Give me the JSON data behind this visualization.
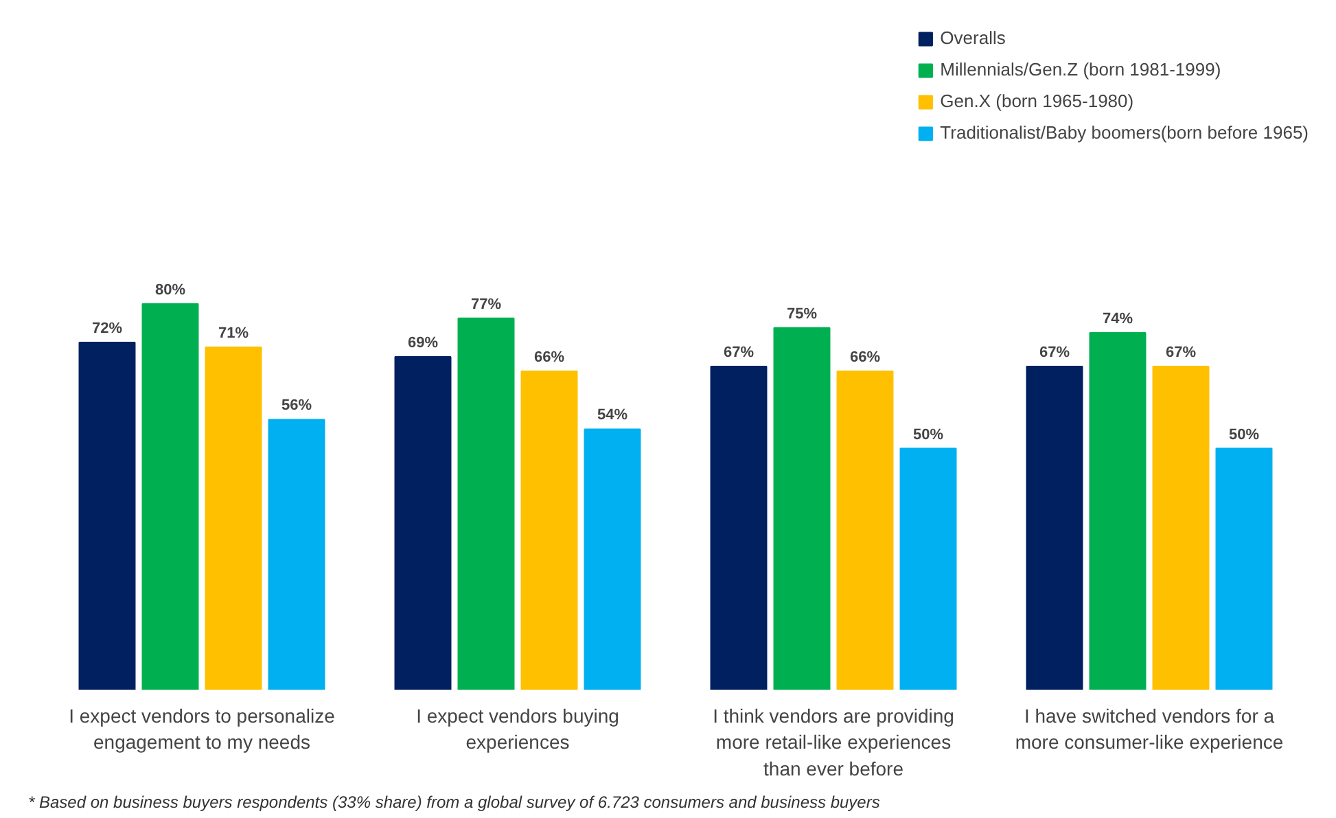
{
  "chart_data": {
    "type": "bar",
    "categories": [
      "I expect vendors to personalize engagement to my needs",
      "I expect vendors buying experiences",
      "I think vendors are providing more retail-like experiences than ever before",
      "I have switched vendors for a more consumer-like experience"
    ],
    "series": [
      {
        "name": "Overalls",
        "color": "#002060",
        "values": [
          72,
          69,
          67,
          67
        ],
        "value_labels": [
          "72%",
          "69%",
          "67%",
          "67%"
        ]
      },
      {
        "name": "Millennials/Gen.Z (born 1981-1999)",
        "color": "#00b050",
        "values": [
          80,
          77,
          75,
          74
        ],
        "value_labels": [
          "80%",
          "77%",
          "75%",
          "74%"
        ]
      },
      {
        "name": "Gen.X (born 1965-1980)",
        "color": "#ffc000",
        "values": [
          71,
          66,
          66,
          67
        ],
        "value_labels": [
          "71%",
          "66%",
          "66%",
          "67%"
        ]
      },
      {
        "name": "Traditionalist/Baby boomers(born before 1965)",
        "color": "#00b0f0",
        "values": [
          56,
          54,
          50,
          50
        ],
        "value_labels": [
          "56%",
          "54%",
          "50%",
          "50%"
        ]
      }
    ],
    "legend": "top right",
    "grid": false,
    "annotations": [
      "* Based on business buyers respondents (33% share) from a global survey of 6.723 consumers and business buyers"
    ]
  }
}
